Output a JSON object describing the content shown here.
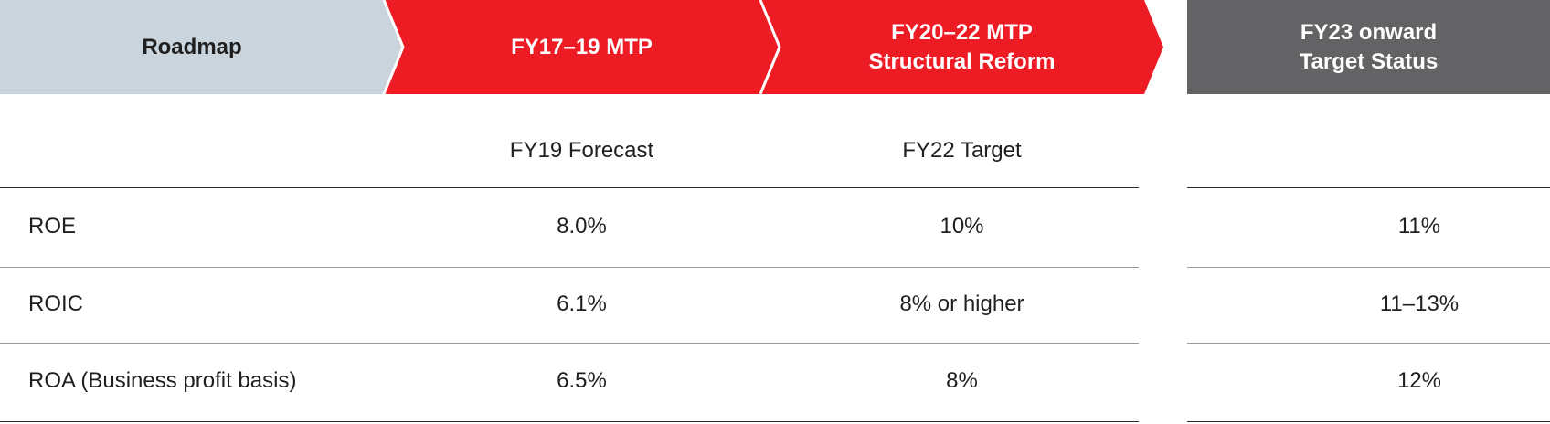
{
  "header": {
    "roadmap": "Roadmap",
    "col1": "FY17–19 MTP",
    "col2": "FY20–22 MTP\nStructural Reform",
    "col3": "FY23 onward\nTarget Status"
  },
  "subheader": {
    "col1": "FY19 Forecast",
    "col2": "FY22 Target",
    "col3": ""
  },
  "rows": [
    {
      "label": "ROE",
      "col1": "8.0%",
      "col2": "10%",
      "col3": "11%"
    },
    {
      "label": "ROIC",
      "col1": "6.1%",
      "col2": "8% or higher",
      "col3": "11–13%"
    },
    {
      "label": "ROA (Business profit basis)",
      "col1": "6.5%",
      "col2": "8%",
      "col3": "12%"
    }
  ],
  "colors": {
    "roadmap_bg": "#c9d4dc",
    "mtp_red": "#ed1c24",
    "status_gray": "#636366",
    "divider": "#ffffff"
  }
}
